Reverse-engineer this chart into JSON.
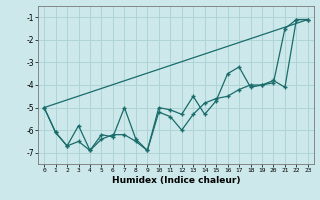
{
  "xlabel": "Humidex (Indice chaleur)",
  "bg_color": "#cce8ea",
  "grid_color": "#afd4d6",
  "line_color": "#1a6b6b",
  "xlim": [
    -0.5,
    23.5
  ],
  "ylim": [
    -7.5,
    -0.5
  ],
  "xticks": [
    0,
    1,
    2,
    3,
    4,
    5,
    6,
    7,
    8,
    9,
    10,
    11,
    12,
    13,
    14,
    15,
    16,
    17,
    18,
    19,
    20,
    21,
    22,
    23
  ],
  "yticks": [
    -7,
    -6,
    -5,
    -4,
    -3,
    -2,
    -1
  ],
  "line1_x": [
    0,
    1,
    2,
    3,
    4,
    5,
    6,
    7,
    8,
    9,
    10,
    11,
    12,
    13,
    14,
    15,
    16,
    17,
    18,
    19,
    20,
    21,
    22,
    23
  ],
  "line1_y": [
    -5.0,
    -6.1,
    -6.7,
    -5.8,
    -6.9,
    -6.2,
    -6.3,
    -5.0,
    -6.4,
    -6.9,
    -5.0,
    -5.1,
    -5.3,
    -4.5,
    -5.3,
    -4.7,
    -3.5,
    -3.2,
    -4.1,
    -4.0,
    -3.9,
    -1.5,
    -1.1,
    -1.1
  ],
  "line2_x": [
    0,
    1,
    2,
    3,
    4,
    5,
    6,
    7,
    8,
    9,
    10,
    11,
    12,
    13,
    14,
    15,
    16,
    17,
    18,
    19,
    20,
    21,
    22,
    23
  ],
  "line2_y": [
    -5.0,
    -6.1,
    -6.7,
    -6.5,
    -6.9,
    -6.4,
    -6.2,
    -6.2,
    -6.5,
    -6.9,
    -5.2,
    -5.4,
    -6.0,
    -5.3,
    -4.8,
    -4.6,
    -4.5,
    -4.2,
    -4.0,
    -4.0,
    -3.8,
    -4.1,
    -1.1,
    -1.1
  ],
  "line3_x": [
    0,
    23
  ],
  "line3_y": [
    -5.0,
    -1.1
  ]
}
